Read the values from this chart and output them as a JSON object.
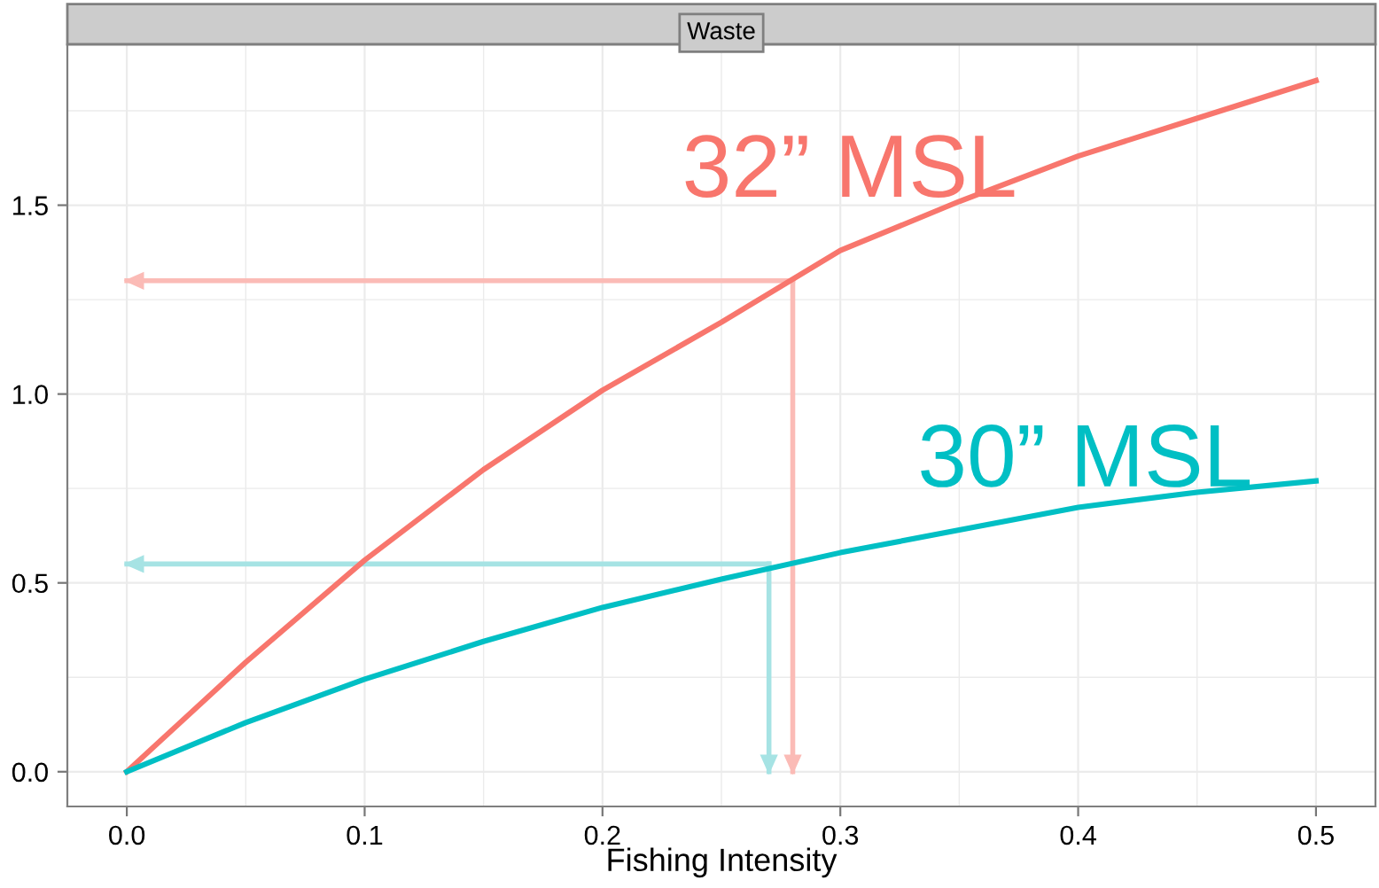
{
  "chart_data": {
    "type": "line",
    "title": "Waste",
    "xlabel": "Fishing Intensity",
    "xlim": [
      -0.025,
      0.525
    ],
    "xticks": [
      {
        "value": 0,
        "label": "0.0"
      },
      0.1,
      0.2,
      0.3,
      0.4,
      0.5
    ],
    "ylim": [
      -0.092,
      1.926
    ],
    "yticks": [
      {
        "value": 0,
        "label": "0.0"
      },
      0.5,
      {
        "value": 1,
        "label": "1.0"
      },
      1.5
    ],
    "grid": true,
    "legend": false,
    "marker": "none",
    "line_style": "solid",
    "series": [
      {
        "name": "32” MSL",
        "color": "#f8766d",
        "x": [
          0,
          0.05,
          0.1,
          0.15,
          0.2,
          0.25,
          0.3,
          0.35,
          0.4,
          0.45,
          0.5
        ],
        "values": [
          0,
          0.29,
          0.56,
          0.8,
          1.01,
          1.19,
          1.38,
          1.51,
          1.63,
          1.73,
          1.83
        ]
      },
      {
        "name": "30” MSL",
        "color": "#00bfc4",
        "x": [
          0,
          0.05,
          0.1,
          0.15,
          0.2,
          0.25,
          0.3,
          0.35,
          0.4,
          0.45,
          0.5
        ],
        "values": [
          0,
          0.13,
          0.245,
          0.345,
          0.435,
          0.51,
          0.58,
          0.64,
          0.7,
          0.74,
          0.77
        ]
      },
      {
        "type": "line",
        "color": "#fbbbb6",
        "x": [
          0.28,
          0.0
        ],
        "values": [
          1.3,
          1.3
        ]
      },
      {
        "type": "line",
        "color": "#fbbbb6",
        "x": [
          0.28,
          0.28
        ],
        "values": [
          1.3,
          0.0
        ]
      },
      {
        "type": "line",
        "color": "#a6e3e4",
        "x": [
          0.27,
          0.0
        ],
        "values": [
          0.55,
          0.55
        ]
      },
      {
        "type": "line",
        "color": "#a6e3e4",
        "x": [
          0.27,
          0.27
        ],
        "values": [
          0.55,
          0.0
        ]
      }
    ]
  }
}
